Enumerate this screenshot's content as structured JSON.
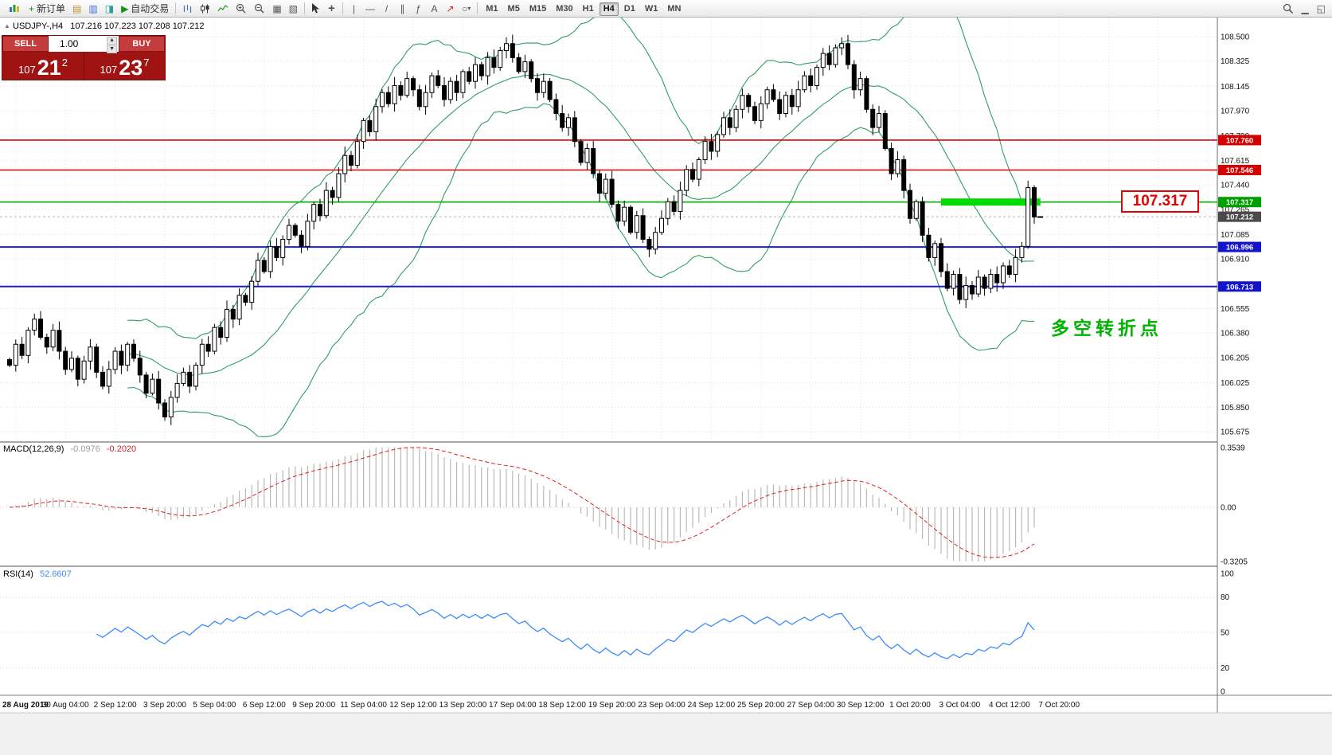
{
  "toolbar": {
    "new_order": "新订单",
    "autotrade": "自动交易",
    "timeframes": [
      "M1",
      "M5",
      "M15",
      "M30",
      "H1",
      "H4",
      "D1",
      "W1",
      "MN"
    ],
    "active_timeframe": "H4",
    "glyphs": {
      "new_order_plus": "+",
      "charts": "▤",
      "profiles": "▥",
      "data_window": "◨",
      "autotrade_play": "▶",
      "tile_windows": "▦",
      "cascade_windows": "▧",
      "crosshair": "+",
      "vline": "|",
      "hline": "—",
      "trendline": "/",
      "channel": "∥",
      "fibonacci": "ƒ",
      "text_tool": "A",
      "arrows_tool": "↗",
      "shapes_tool": "○",
      "caret": "▾",
      "win_minimize": "▁",
      "win_restore": "◱"
    }
  },
  "trade_panel": {
    "sell_label": "SELL",
    "buy_label": "BUY",
    "volume": "1.00",
    "sell_price": {
      "base": "107",
      "big": "21",
      "sup": "2"
    },
    "buy_price": {
      "base": "107",
      "big": "23",
      "sup": "7"
    }
  },
  "chart": {
    "collapse_arrow": "▲",
    "title": "USDJPY-,H4",
    "ohlc": "107.216 107.223 107.208 107.212"
  },
  "chart_data": [
    {
      "type": "candlestick",
      "symbol": "USDJPY-",
      "timeframe": "H4",
      "ohlc_display": {
        "open": "107.216",
        "high": "107.223",
        "low": "107.208",
        "close": "107.212"
      },
      "bollinger": {
        "period": 20,
        "deviation": 2,
        "color": "#2f9e63"
      },
      "closes": [
        106.15,
        106.3,
        106.22,
        106.4,
        106.48,
        106.35,
        106.28,
        106.4,
        106.25,
        106.12,
        106.2,
        106.05,
        106.18,
        106.28,
        106.1,
        106.0,
        106.12,
        106.25,
        106.15,
        106.3,
        106.2,
        106.08,
        105.95,
        106.05,
        105.88,
        105.78,
        105.92,
        106.02,
        106.1,
        106.0,
        106.15,
        106.3,
        106.25,
        106.42,
        106.35,
        106.55,
        106.48,
        106.65,
        106.6,
        106.75,
        106.9,
        106.82,
        107.0,
        106.92,
        107.05,
        107.15,
        107.08,
        107.0,
        107.18,
        107.3,
        107.22,
        107.4,
        107.35,
        107.52,
        107.65,
        107.58,
        107.75,
        107.9,
        107.82,
        108.0,
        108.1,
        108.02,
        108.15,
        108.08,
        108.2,
        108.12,
        108.0,
        108.1,
        108.22,
        108.15,
        108.05,
        108.18,
        108.1,
        108.25,
        108.18,
        108.3,
        108.22,
        108.35,
        108.28,
        108.4,
        108.45,
        108.35,
        108.25,
        108.32,
        108.2,
        108.1,
        108.18,
        108.05,
        107.95,
        107.85,
        107.92,
        107.75,
        107.6,
        107.7,
        107.52,
        107.38,
        107.48,
        107.3,
        107.18,
        107.28,
        107.1,
        107.22,
        107.05,
        106.98,
        107.1,
        107.2,
        107.32,
        107.25,
        107.4,
        107.55,
        107.48,
        107.62,
        107.75,
        107.68,
        107.8,
        107.92,
        107.85,
        107.98,
        108.08,
        108.0,
        107.9,
        108.02,
        108.12,
        108.05,
        107.95,
        108.08,
        108.0,
        108.12,
        108.22,
        108.15,
        108.28,
        108.38,
        108.3,
        108.42,
        108.45,
        108.3,
        108.12,
        108.2,
        107.98,
        107.85,
        107.95,
        107.7,
        107.52,
        107.62,
        107.4,
        107.2,
        107.32,
        107.08,
        106.92,
        107.02,
        106.82,
        106.7,
        106.8,
        106.62,
        106.72,
        106.66,
        106.78,
        106.7,
        106.8,
        106.74,
        106.86,
        106.8,
        106.92,
        107.0,
        107.42,
        107.21
      ],
      "hlines": [
        {
          "price": 107.76,
          "tag": "107.760",
          "color": "#e00000",
          "tag_color": "#d40000",
          "width": 1.6
        },
        {
          "price": 107.546,
          "tag": "107.546",
          "color": "#e00000",
          "tag_color": "#d40000",
          "width": 1.6
        },
        {
          "price": 107.317,
          "tag": "107.317",
          "color": "#00b400",
          "tag_color": "#00a000",
          "width": 1.6
        },
        {
          "price": 106.996,
          "tag": "106.996",
          "color": "#1a1ad4",
          "tag_color": "#1414c8",
          "width": 2
        },
        {
          "price": 106.713,
          "tag": "106.713",
          "color": "#1a1ad4",
          "tag_color": "#1414c8",
          "width": 2
        }
      ],
      "bid": {
        "price": 107.212,
        "tag": "107.212",
        "tag_color": "#4a4a4a"
      },
      "highlight": {
        "price": 107.317,
        "from_index": 150,
        "to_index": 166,
        "thickness": 9,
        "color": "#00dc00"
      },
      "y_axis": {
        "labels": [
          "108.500",
          "108.325",
          "108.145",
          "107.970",
          "107.790",
          "107.615",
          "107.440",
          "107.265",
          "107.085",
          "106.910",
          "106.730",
          "106.555",
          "106.380",
          "106.205",
          "106.025",
          "105.850",
          "105.675"
        ]
      },
      "x_axis": {
        "labels": [
          "28 Aug 2019",
          "30 Aug 04:00",
          "2 Sep 12:00",
          "3 Sep 20:00",
          "5 Sep 04:00",
          "6 Sep 12:00",
          "9 Sep 20:00",
          "11 Sep 04:00",
          "12 Sep 12:00",
          "13 Sep 20:00",
          "17 Sep 04:00",
          "18 Sep 12:00",
          "19 Sep 20:00",
          "23 Sep 04:00",
          "24 Sep 12:00",
          "25 Sep 20:00",
          "27 Sep 04:00",
          "30 Sep 12:00",
          "1 Oct 20:00",
          "3 Oct 04:00",
          "4 Oct 12:00",
          "7 Oct 20:00"
        ]
      },
      "annotation_text": "多空转折点",
      "callout_text": "107.317"
    },
    {
      "type": "macd",
      "label": "MACD(12,26,9)",
      "value_main": "-0.0976",
      "value_signal": "-0.2020",
      "params": [
        12,
        26,
        9
      ],
      "y_labels": [
        "0.3539",
        "0.00",
        "-0.3205"
      ],
      "y_max": 0.3539,
      "y_min": -0.3205,
      "histogram_color": "#b9b9b9",
      "signal_color": "#e02020"
    },
    {
      "type": "rsi",
      "label": "RSI(14)",
      "value": "52.6607",
      "period": 14,
      "levels": [
        80,
        50,
        20
      ],
      "y_labels": [
        "100",
        "80",
        "50",
        "20",
        "0"
      ],
      "line_color": "#3d8bfd"
    }
  ]
}
